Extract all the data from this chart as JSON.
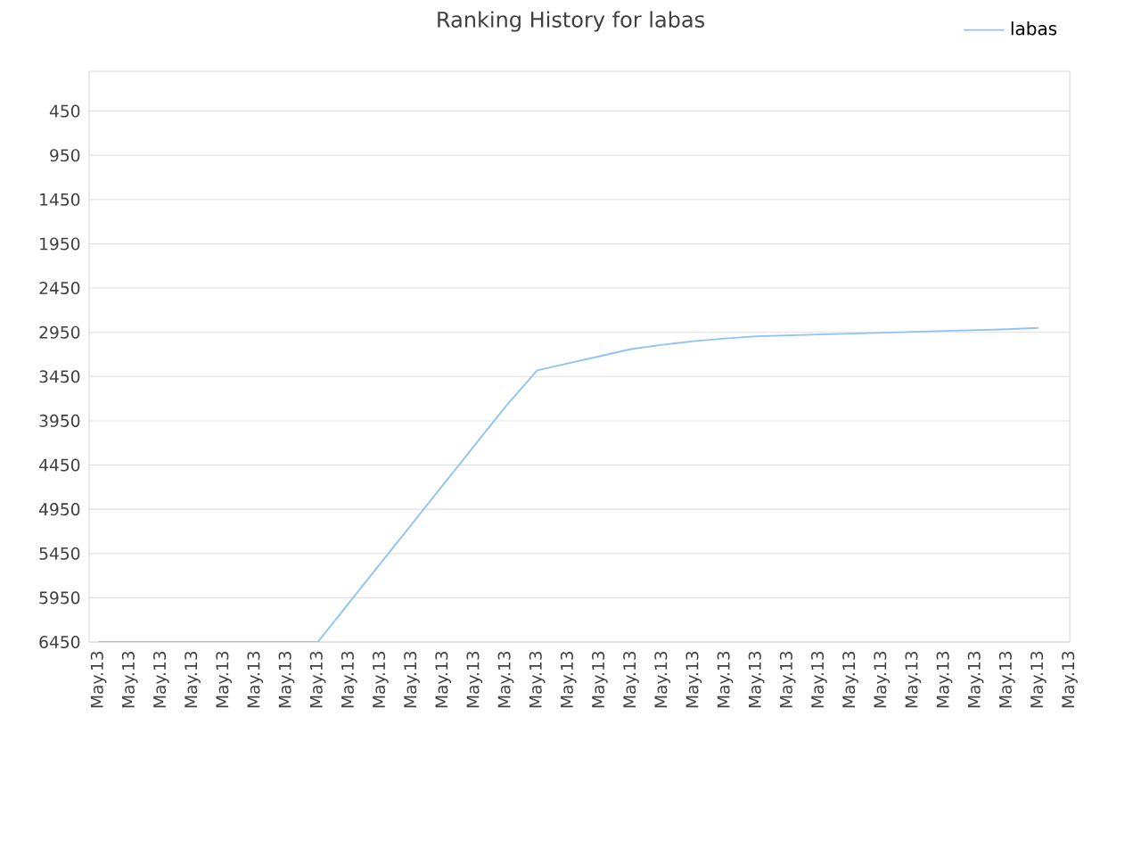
{
  "chart_data": {
    "type": "line",
    "title": "Ranking History for labas",
    "categories": [
      "May.13",
      "May.13",
      "May.13",
      "May.13",
      "May.13",
      "May.13",
      "May.13",
      "May.13",
      "May.13",
      "May.13",
      "May.13",
      "May.13",
      "May.13",
      "May.13",
      "May.13",
      "May.13",
      "May.13",
      "May.13",
      "May.13",
      "May.13",
      "May.13",
      "May.13",
      "May.13",
      "May.13",
      "May.13",
      "May.13",
      "May.13",
      "May.13",
      "May.13",
      "May.13",
      "May.13",
      "May.13"
    ],
    "series": [
      {
        "name": "labas",
        "color": "#90c3f5",
        "values": [
          6450,
          6450,
          6450,
          6450,
          6450,
          6450,
          6450,
          6450,
          6006,
          5562,
          5118,
          4674,
          4230,
          3786,
          3380,
          3300,
          3220,
          3140,
          3090,
          3050,
          3020,
          2995,
          2985,
          2975,
          2965,
          2955,
          2945,
          2935,
          2925,
          2915,
          2900,
          null
        ]
      }
    ],
    "ylim": [
      6450,
      1
    ],
    "yticks": [
      450,
      950,
      1450,
      1950,
      2450,
      2950,
      3450,
      3950,
      4450,
      4950,
      5450,
      5950,
      6450
    ],
    "grid": "y",
    "legend": "top right",
    "marker": "none",
    "line_style": "solid"
  }
}
